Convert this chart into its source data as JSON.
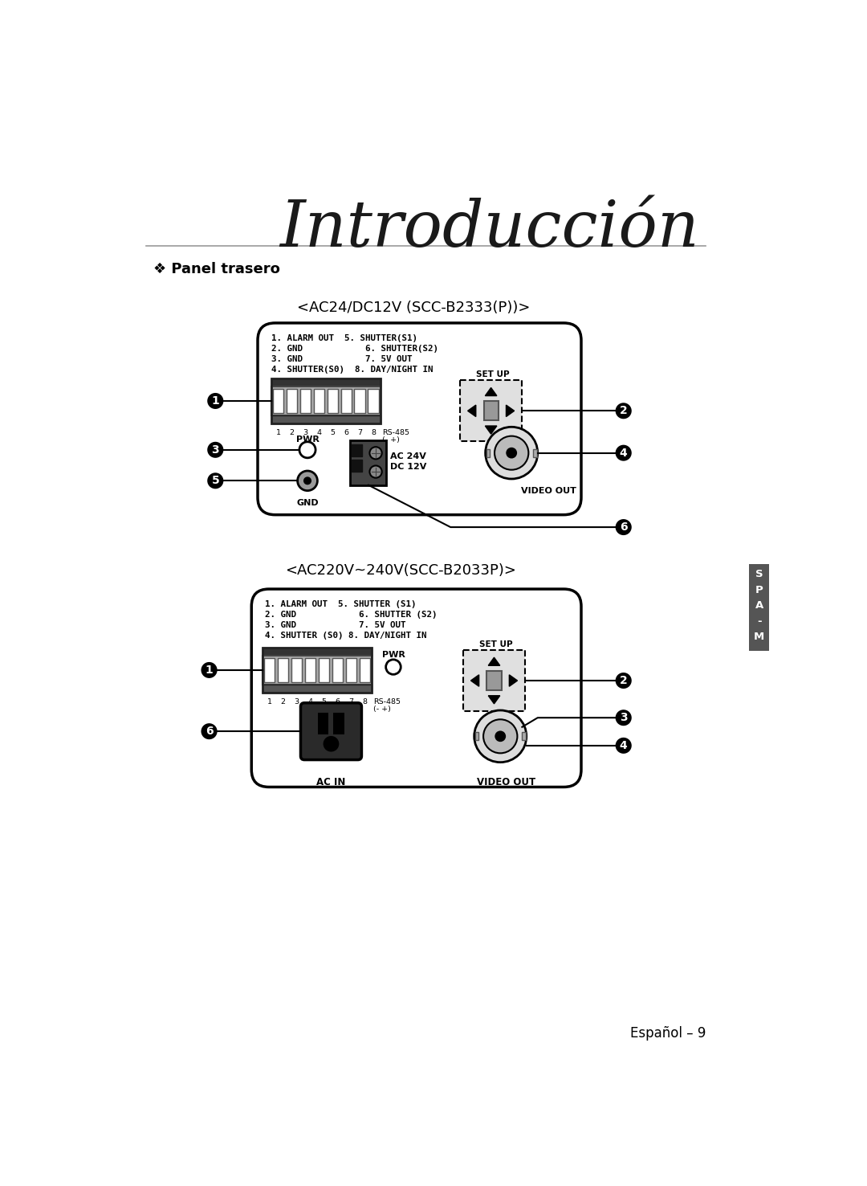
{
  "title": "Introducción",
  "section_bullet": "❖ Panel trasero",
  "diagram1_title": "<AC24/DC12V (SCC-B2333(P))>",
  "diagram2_title": "<AC220V~240V(SCC-B2033P)>",
  "pin_labels_1": [
    "1. ALARM OUT  5. SHUTTER(S1)",
    "2. GND            6. SHUTTER(S2)",
    "3. GND            7. 5V OUT",
    "4. SHUTTER(S0)  8. DAY/NIGHT IN"
  ],
  "pin_labels_2": [
    "1. ALARM OUT  5. SHUTTER (S1)",
    "2. GND            6. SHUTTER (S2)",
    "3. GND            7. 5V OUT",
    "4. SHUTTER (S0) 8. DAY/NIGHT IN"
  ],
  "footer": "Español – 9",
  "bg_color": "#ffffff"
}
